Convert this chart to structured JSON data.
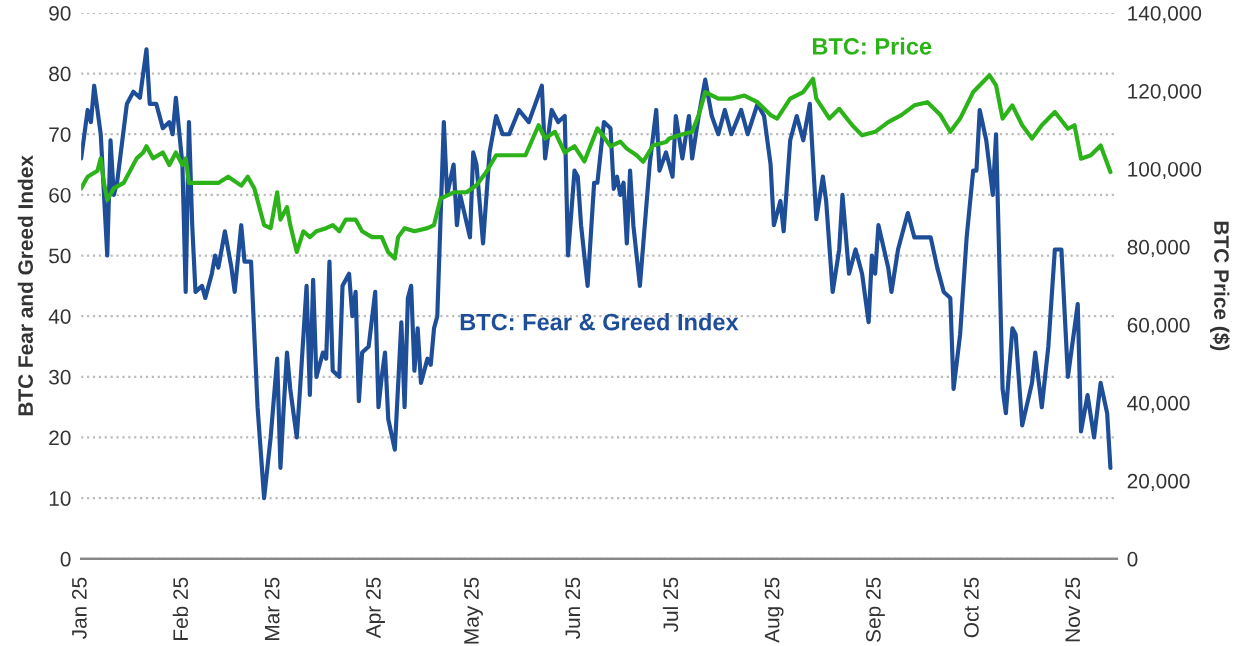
{
  "chart_data": {
    "type": "line",
    "ylabel": "BTC Fear and Greed Index",
    "y2label": "BTC Price ($)",
    "xlim": [
      "2025-01-01",
      "2025-11-14"
    ],
    "xticks": [
      {
        "value": "2025-01-01",
        "label": "Jan 25"
      },
      {
        "value": "2025-02-01",
        "label": "Feb 25"
      },
      {
        "value": "2025-03-01",
        "label": "Mar 25"
      },
      {
        "value": "2025-04-01",
        "label": "Apr 25"
      },
      {
        "value": "2025-05-01",
        "label": "May 25"
      },
      {
        "value": "2025-06-01",
        "label": "Jun 25"
      },
      {
        "value": "2025-07-01",
        "label": "Jul 25"
      },
      {
        "value": "2025-08-01",
        "label": "Aug 25"
      },
      {
        "value": "2025-09-01",
        "label": "Sep 25"
      },
      {
        "value": "2025-10-01",
        "label": "Oct 25"
      },
      {
        "value": "2025-11-01",
        "label": "Nov 25"
      }
    ],
    "ylim": [
      0,
      90
    ],
    "yticks": [
      0,
      10,
      20,
      30,
      40,
      50,
      60,
      70,
      80,
      90
    ],
    "y2lim": [
      0,
      140000
    ],
    "y2ticks": [
      {
        "value": 0,
        "label": "0"
      },
      {
        "value": 20000,
        "label": "20,000"
      },
      {
        "value": 40000,
        "label": "40,000"
      },
      {
        "value": 60000,
        "label": "60,000"
      },
      {
        "value": 80000,
        "label": "80,000"
      },
      {
        "value": 100000,
        "label": "100,000"
      },
      {
        "value": 120000,
        "label": "120,000"
      },
      {
        "value": 140000,
        "label": "140,000"
      }
    ],
    "grid": "y",
    "legend": false,
    "series": [
      {
        "name": "BTC: Fear & Greed Index",
        "color": "#1f4e99",
        "axis": "y",
        "x": [
          "2025-01-01",
          "2025-01-03",
          "2025-01-04",
          "2025-01-05",
          "2025-01-07",
          "2025-01-09",
          "2025-01-10",
          "2025-01-11",
          "2025-01-12",
          "2025-01-15",
          "2025-01-17",
          "2025-01-19",
          "2025-01-21",
          "2025-01-22",
          "2025-01-24",
          "2025-01-26",
          "2025-01-28",
          "2025-01-29",
          "2025-01-30",
          "2025-02-01",
          "2025-02-02",
          "2025-02-03",
          "2025-02-04",
          "2025-02-05",
          "2025-02-07",
          "2025-02-08",
          "2025-02-10",
          "2025-02-11",
          "2025-02-12",
          "2025-02-14",
          "2025-02-16",
          "2025-02-17",
          "2025-02-19",
          "2025-02-20",
          "2025-02-22",
          "2025-02-24",
          "2025-02-26",
          "2025-02-28",
          "2025-03-02",
          "2025-03-03",
          "2025-03-04",
          "2025-03-05",
          "2025-03-06",
          "2025-03-08",
          "2025-03-09",
          "2025-03-11",
          "2025-03-12",
          "2025-03-13",
          "2025-03-14",
          "2025-03-16",
          "2025-03-17",
          "2025-03-18",
          "2025-03-19",
          "2025-03-21",
          "2025-03-22",
          "2025-03-24",
          "2025-03-25",
          "2025-03-26",
          "2025-03-27",
          "2025-03-28",
          "2025-03-30",
          "2025-04-01",
          "2025-04-02",
          "2025-04-03",
          "2025-04-04",
          "2025-04-05",
          "2025-04-07",
          "2025-04-09",
          "2025-04-10",
          "2025-04-11",
          "2025-04-12",
          "2025-04-13",
          "2025-04-14",
          "2025-04-15",
          "2025-04-17",
          "2025-04-18",
          "2025-04-19",
          "2025-04-20",
          "2025-04-22",
          "2025-04-23",
          "2025-04-25",
          "2025-04-26",
          "2025-04-27",
          "2025-04-30",
          "2025-05-01",
          "2025-05-02",
          "2025-05-04",
          "2025-05-06",
          "2025-05-08",
          "2025-05-10",
          "2025-05-12",
          "2025-05-15",
          "2025-05-18",
          "2025-05-22",
          "2025-05-23",
          "2025-05-25",
          "2025-05-27",
          "2025-05-29",
          "2025-05-30",
          "2025-06-01",
          "2025-06-02",
          "2025-06-03",
          "2025-06-05",
          "2025-06-07",
          "2025-06-08",
          "2025-06-10",
          "2025-06-12",
          "2025-06-13",
          "2025-06-14",
          "2025-06-15",
          "2025-06-16",
          "2025-06-17",
          "2025-06-18",
          "2025-06-19",
          "2025-06-21",
          "2025-06-24",
          "2025-06-26",
          "2025-06-27",
          "2025-06-29",
          "2025-07-01",
          "2025-07-02",
          "2025-07-04",
          "2025-07-06",
          "2025-07-07",
          "2025-07-09",
          "2025-07-11",
          "2025-07-13",
          "2025-07-15",
          "2025-07-17",
          "2025-07-19",
          "2025-07-22",
          "2025-07-24",
          "2025-07-27",
          "2025-07-29",
          "2025-07-31",
          "2025-08-01",
          "2025-08-03",
          "2025-08-04",
          "2025-08-06",
          "2025-08-08",
          "2025-08-10",
          "2025-08-12",
          "2025-08-14",
          "2025-08-16",
          "2025-08-17",
          "2025-08-19",
          "2025-08-21",
          "2025-08-22",
          "2025-08-24",
          "2025-08-26",
          "2025-08-28",
          "2025-08-30",
          "2025-08-31",
          "2025-09-01",
          "2025-09-02",
          "2025-09-05",
          "2025-09-06",
          "2025-09-08",
          "2025-09-11",
          "2025-09-13",
          "2025-09-15",
          "2025-09-18",
          "2025-09-20",
          "2025-09-22",
          "2025-09-24",
          "2025-09-25",
          "2025-09-27",
          "2025-09-29",
          "2025-10-01",
          "2025-10-02",
          "2025-10-03",
          "2025-10-05",
          "2025-10-07",
          "2025-10-08",
          "2025-10-10",
          "2025-10-11",
          "2025-10-13",
          "2025-10-14",
          "2025-10-16",
          "2025-10-19",
          "2025-10-20",
          "2025-10-22",
          "2025-10-24",
          "2025-10-26",
          "2025-10-28",
          "2025-10-30",
          "2025-11-02",
          "2025-11-03",
          "2025-11-05",
          "2025-11-07",
          "2025-11-09",
          "2025-11-11",
          "2025-11-12"
        ],
        "values": [
          66,
          74,
          72,
          78,
          70,
          50,
          69,
          60,
          62,
          75,
          77,
          76,
          84,
          75,
          75,
          71,
          72,
          70,
          76,
          65,
          44,
          72,
          55,
          44,
          45,
          43,
          47,
          50,
          48,
          54,
          48,
          44,
          55,
          49,
          49,
          25,
          10,
          20,
          33,
          15,
          25,
          34,
          28,
          20,
          28,
          45,
          27,
          46,
          30,
          34,
          33,
          49,
          31,
          30,
          45,
          47,
          40,
          44,
          26,
          34,
          35,
          44,
          25,
          30,
          34,
          23,
          18,
          39,
          25,
          43,
          45,
          31,
          38,
          29,
          33,
          32,
          38,
          40,
          72,
          60,
          65,
          55,
          60,
          53,
          67,
          65,
          52,
          67,
          73,
          70,
          70,
          74,
          72,
          78,
          66,
          74,
          72,
          73,
          50,
          64,
          63,
          55,
          45,
          62,
          62,
          72,
          71,
          61,
          63,
          60,
          62,
          52,
          64,
          55,
          45,
          65,
          74,
          64,
          67,
          63,
          73,
          66,
          73,
          66,
          73,
          79,
          73,
          70,
          74,
          70,
          74,
          70,
          75,
          73,
          65,
          55,
          59,
          54,
          69,
          73,
          69,
          75,
          56,
          63,
          59,
          44,
          51,
          60,
          47,
          51,
          47,
          39,
          50,
          47,
          55,
          48,
          44,
          51,
          57,
          53,
          53,
          53,
          48,
          44,
          43,
          28,
          37,
          53,
          64,
          64,
          74,
          69,
          60,
          70,
          28,
          24,
          38,
          37,
          22,
          29,
          34,
          25,
          35,
          51,
          51,
          30,
          42,
          21,
          27,
          20,
          29,
          24,
          15
        ]
      },
      {
        "name": "BTC: Price",
        "color": "#2db31a",
        "axis": "y2",
        "x": [
          "2025-01-01",
          "2025-01-03",
          "2025-01-06",
          "2025-01-07",
          "2025-01-08",
          "2025-01-09",
          "2025-01-11",
          "2025-01-14",
          "2025-01-16",
          "2025-01-18",
          "2025-01-20",
          "2025-01-21",
          "2025-01-23",
          "2025-01-26",
          "2025-01-28",
          "2025-01-30",
          "2025-02-01",
          "2025-02-02",
          "2025-02-03",
          "2025-02-08",
          "2025-02-12",
          "2025-02-15",
          "2025-02-19",
          "2025-02-21",
          "2025-02-23",
          "2025-02-26",
          "2025-02-28",
          "2025-03-02",
          "2025-03-03",
          "2025-03-05",
          "2025-03-06",
          "2025-03-08",
          "2025-03-10",
          "2025-03-12",
          "2025-03-14",
          "2025-03-17",
          "2025-03-19",
          "2025-03-21",
          "2025-03-23",
          "2025-03-26",
          "2025-03-28",
          "2025-03-31",
          "2025-04-03",
          "2025-04-05",
          "2025-04-07",
          "2025-04-08",
          "2025-04-10",
          "2025-04-13",
          "2025-04-17",
          "2025-04-19",
          "2025-04-21",
          "2025-04-25",
          "2025-04-29",
          "2025-05-02",
          "2025-05-05",
          "2025-05-08",
          "2025-05-12",
          "2025-05-17",
          "2025-05-21",
          "2025-05-23",
          "2025-05-26",
          "2025-05-29",
          "2025-06-01",
          "2025-06-04",
          "2025-06-08",
          "2025-06-12",
          "2025-06-15",
          "2025-06-17",
          "2025-06-20",
          "2025-06-22",
          "2025-06-25",
          "2025-06-29",
          "2025-06-30",
          "2025-07-03",
          "2025-07-07",
          "2025-07-09",
          "2025-07-11",
          "2025-07-15",
          "2025-07-19",
          "2025-07-23",
          "2025-07-27",
          "2025-07-31",
          "2025-08-02",
          "2025-08-06",
          "2025-08-10",
          "2025-08-13",
          "2025-08-14",
          "2025-08-18",
          "2025-08-21",
          "2025-08-25",
          "2025-08-28",
          "2025-09-01",
          "2025-09-05",
          "2025-09-09",
          "2025-09-13",
          "2025-09-17",
          "2025-09-21",
          "2025-09-24",
          "2025-09-27",
          "2025-10-01",
          "2025-10-06",
          "2025-10-08",
          "2025-10-10",
          "2025-10-13",
          "2025-10-16",
          "2025-10-19",
          "2025-10-22",
          "2025-10-26",
          "2025-10-30",
          "2025-11-01",
          "2025-11-03",
          "2025-11-06",
          "2025-11-09",
          "2025-11-12"
        ],
        "values": [
          95000,
          98000,
          99500,
          102700,
          96400,
          92000,
          95000,
          96400,
          99500,
          102700,
          104200,
          105800,
          102700,
          104200,
          101000,
          104200,
          101000,
          102700,
          96400,
          96400,
          96400,
          98000,
          95700,
          98000,
          95000,
          85600,
          84800,
          94000,
          87000,
          90200,
          85600,
          78700,
          84000,
          82500,
          84000,
          84800,
          85600,
          84000,
          87000,
          87000,
          84000,
          82500,
          82500,
          78600,
          77000,
          82500,
          84800,
          84000,
          84800,
          85600,
          92400,
          94000,
          94000,
          95800,
          99200,
          103500,
          103500,
          103500,
          111200,
          107800,
          109500,
          104200,
          105800,
          101900,
          110400,
          105800,
          107000,
          105200,
          103500,
          101800,
          106000,
          106900,
          107800,
          108600,
          109500,
          113800,
          119700,
          118000,
          118000,
          118800,
          117100,
          113800,
          112900,
          118000,
          119700,
          123100,
          118000,
          112900,
          115400,
          111200,
          108600,
          109500,
          112000,
          113800,
          116300,
          117100,
          113800,
          109500,
          112900,
          119700,
          124000,
          121400,
          112900,
          116300,
          111200,
          107800,
          111200,
          114600,
          110300,
          111200,
          102600,
          103500,
          106000,
          99200
        ]
      }
    ]
  }
}
